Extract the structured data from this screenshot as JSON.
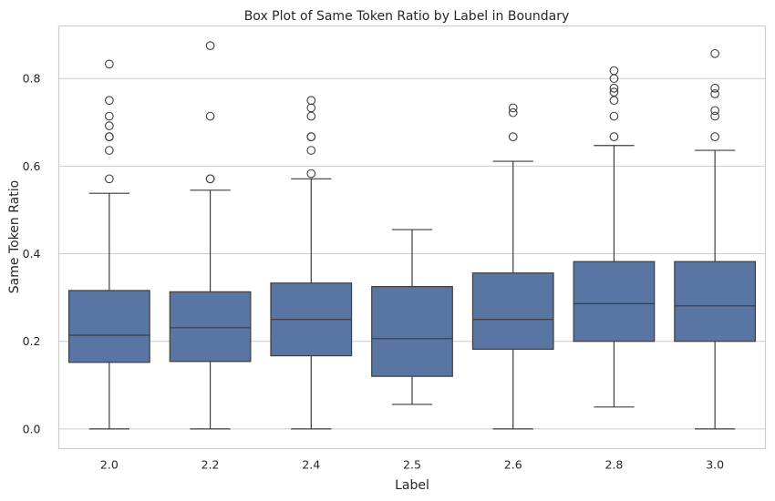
{
  "chart_data": {
    "type": "box",
    "title": "Box Plot of Same Token Ratio by Label in Boundary",
    "xlabel": "Label",
    "ylabel": "Same Token Ratio",
    "ylim": [
      -0.045,
      0.92
    ],
    "yticks": [
      0.0,
      0.2,
      0.4,
      0.6,
      0.8
    ],
    "ytick_labels": [
      "0.0",
      "0.2",
      "0.4",
      "0.6",
      "0.8"
    ],
    "grid": true,
    "box_color": "#5875a4",
    "line_color": "#3d3d3d",
    "categories": [
      "2.0",
      "2.2",
      "2.4",
      "2.5",
      "2.6",
      "2.8",
      "3.0"
    ],
    "boxes": [
      {
        "label": "2.0",
        "whislo": 0.0,
        "q1": 0.152,
        "med": 0.214,
        "q3": 0.316,
        "whishi": 0.538,
        "fliers": [
          0.571,
          0.636,
          0.667,
          0.667,
          0.692,
          0.714,
          0.75,
          0.833
        ]
      },
      {
        "label": "2.2",
        "whislo": 0.0,
        "q1": 0.154,
        "med": 0.231,
        "q3": 0.313,
        "whishi": 0.545,
        "fliers": [
          0.571,
          0.571,
          0.714,
          0.875
        ]
      },
      {
        "label": "2.4",
        "whislo": 0.0,
        "q1": 0.167,
        "med": 0.25,
        "q3": 0.333,
        "whishi": 0.571,
        "fliers": [
          0.583,
          0.636,
          0.667,
          0.667,
          0.714,
          0.733,
          0.75
        ]
      },
      {
        "label": "2.5",
        "whislo": 0.056,
        "q1": 0.12,
        "med": 0.206,
        "q3": 0.325,
        "whishi": 0.455,
        "fliers": []
      },
      {
        "label": "2.6",
        "whislo": 0.0,
        "q1": 0.182,
        "med": 0.25,
        "q3": 0.356,
        "whishi": 0.611,
        "fliers": [
          0.667,
          0.722,
          0.733
        ]
      },
      {
        "label": "2.8",
        "whislo": 0.05,
        "q1": 0.2,
        "med": 0.286,
        "q3": 0.382,
        "whishi": 0.647,
        "fliers": [
          0.667,
          0.714,
          0.75,
          0.769,
          0.778,
          0.8,
          0.818
        ]
      },
      {
        "label": "3.0",
        "whislo": 0.0,
        "q1": 0.2,
        "med": 0.281,
        "q3": 0.382,
        "whishi": 0.636,
        "fliers": [
          0.667,
          0.714,
          0.727,
          0.765,
          0.778,
          0.857
        ]
      }
    ]
  }
}
